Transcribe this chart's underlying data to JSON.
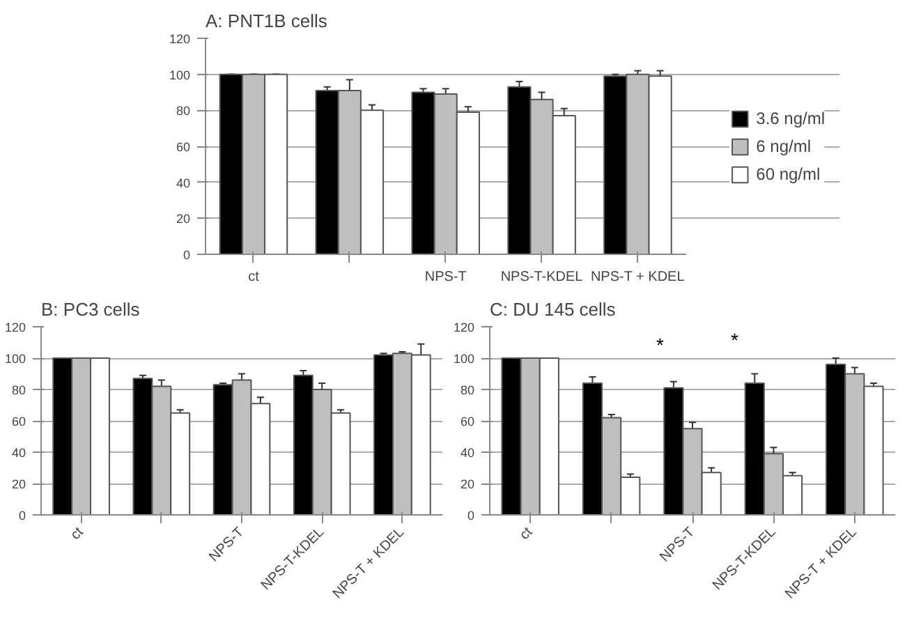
{
  "chart_data": [
    {
      "type": "bar",
      "title": "A: PNT1B cells",
      "categories": [
        "ct",
        null,
        "NPS-T",
        "NPS-T-KDEL",
        "NPS-T + KDEL"
      ],
      "ylim": [
        0,
        120
      ],
      "yticks": [
        0,
        20,
        40,
        60,
        80,
        100,
        120
      ],
      "grid": "y",
      "legend": "right",
      "series": [
        {
          "name": "3.6 ng/ml",
          "color": "#000000",
          "values": [
            100,
            91,
            90,
            93,
            99
          ],
          "errors": [
            0,
            2,
            2,
            3,
            1
          ]
        },
        {
          "name": "6 ng/ml",
          "color": "#bfbfbf",
          "values": [
            100,
            91,
            89,
            86,
            100
          ],
          "errors": [
            0,
            6,
            3,
            4,
            2
          ]
        },
        {
          "name": "60 ng/ml",
          "color": "#ffffff",
          "values": [
            100,
            80,
            79,
            77,
            99
          ],
          "errors": [
            0,
            3,
            3,
            4,
            3
          ]
        }
      ]
    },
    {
      "type": "bar",
      "title": "B: PC3 cells",
      "categories": [
        "ct",
        null,
        "NPS-T",
        "NPS-T-KDEL",
        "NPS-T + KDEL"
      ],
      "ylim": [
        0,
        120
      ],
      "yticks": [
        0,
        20,
        40,
        60,
        80,
        100,
        120
      ],
      "grid": "y",
      "series": [
        {
          "color": "#000000",
          "values": [
            100,
            87,
            83,
            89,
            102
          ],
          "errors": [
            0,
            2,
            1,
            3,
            1
          ]
        },
        {
          "color": "#bfbfbf",
          "values": [
            100,
            82,
            86,
            80,
            103
          ],
          "errors": [
            0,
            4,
            4,
            4,
            1
          ]
        },
        {
          "color": "#ffffff",
          "values": [
            100,
            65,
            71,
            65,
            102
          ],
          "errors": [
            0,
            2,
            4,
            2,
            7
          ]
        }
      ]
    },
    {
      "type": "bar",
      "title": "C: DU 145 cells",
      "categories": [
        "ct",
        null,
        "NPS-T",
        "NPS-T-KDEL",
        "NPS-T + KDEL"
      ],
      "ylim": [
        0,
        120
      ],
      "yticks": [
        0,
        20,
        40,
        60,
        80,
        100,
        120
      ],
      "grid": "y",
      "annotations": [
        "*",
        "*"
      ],
      "series": [
        {
          "color": "#000000",
          "values": [
            100,
            84,
            81,
            84,
            96
          ],
          "errors": [
            0,
            4,
            4,
            6,
            4
          ]
        },
        {
          "color": "#bfbfbf",
          "values": [
            100,
            62,
            55,
            39,
            90
          ],
          "errors": [
            0,
            2,
            4,
            4,
            4
          ]
        },
        {
          "color": "#ffffff",
          "values": [
            100,
            24,
            27,
            25,
            82
          ],
          "errors": [
            0,
            2,
            3,
            2,
            2
          ]
        }
      ]
    }
  ]
}
